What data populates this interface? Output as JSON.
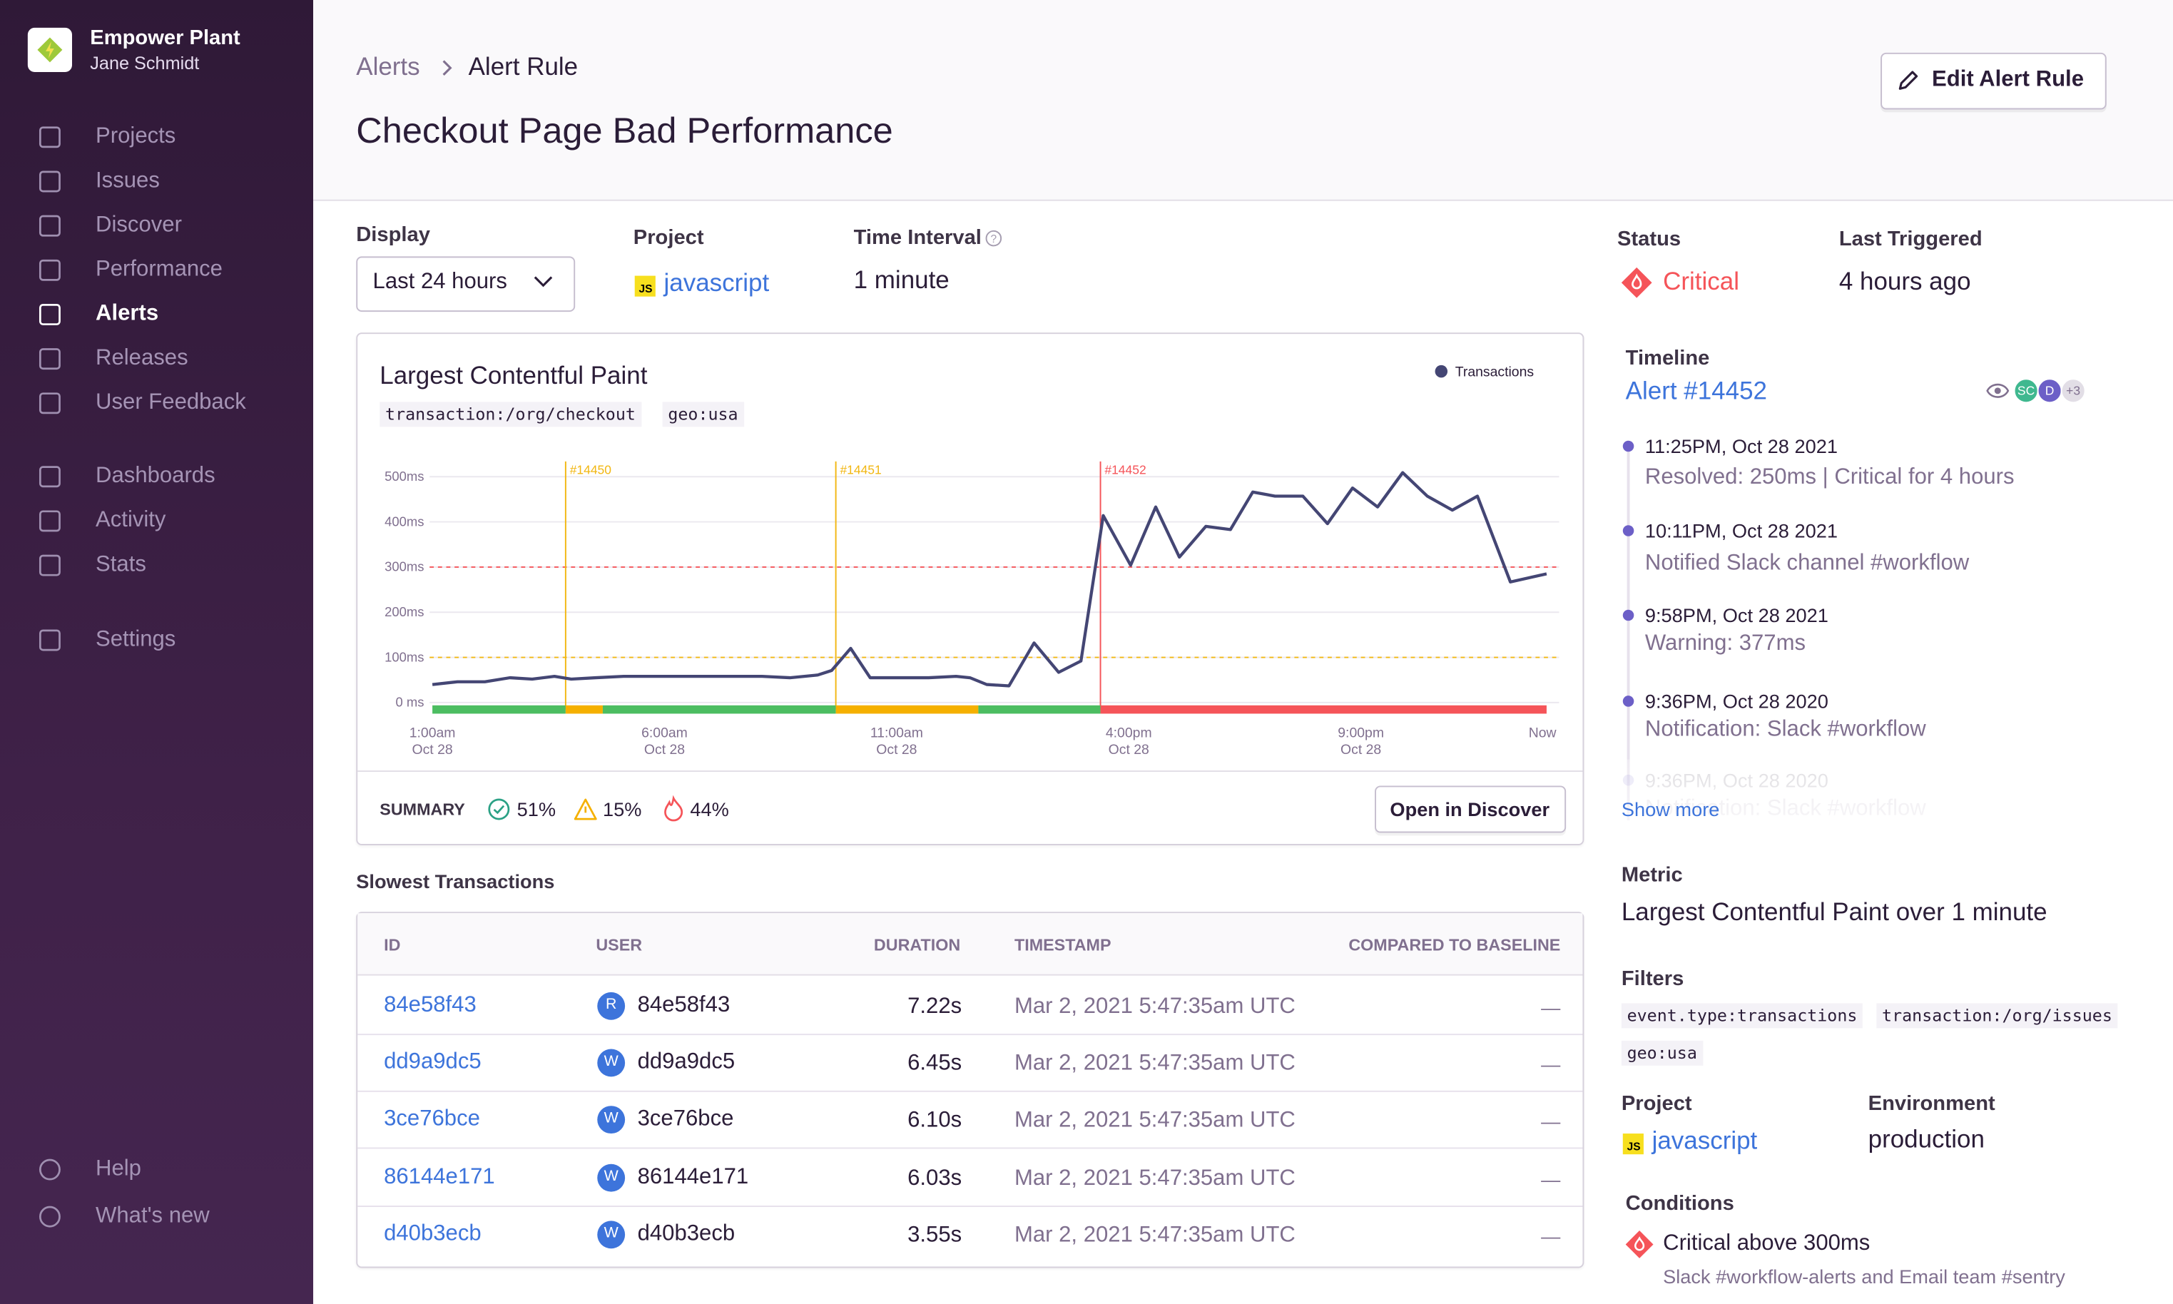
{
  "sidebar": {
    "org": "Empower Plant",
    "user": "Jane Schmidt",
    "nav": [
      "Projects",
      "Issues",
      "Discover",
      "Performance",
      "Alerts",
      "Releases",
      "User Feedback",
      "Dashboards",
      "Activity",
      "Stats",
      "Settings"
    ],
    "footer": [
      "Help",
      "What's new"
    ]
  },
  "header": {
    "breadcrumb": [
      "Alerts",
      "Alert Rule"
    ],
    "title": "Checkout Page Bad Performance",
    "edit_button": "Edit Alert Rule"
  },
  "controls": {
    "display_label": "Display",
    "display_value": "Last 24 hours",
    "project_label": "Project",
    "project_badge": "JS",
    "project_value": "javascript",
    "interval_label": "Time Interval",
    "interval_value": "1 minute"
  },
  "chart": {
    "type": "line",
    "title": "Largest Contentful Paint",
    "tags": [
      "transaction:/org/checkout",
      "geo:usa"
    ],
    "x": [
      1,
      1.54,
      2.13,
      2.67,
      3.15,
      3.63,
      3.99,
      4.52,
      5.12,
      5.72,
      6.31,
      6.91,
      7.51,
      8.1,
      8.7,
      9.3,
      9.6,
      10.01,
      10.43,
      11.09,
      11.69,
      12.28,
      12.58,
      12.94,
      13.42,
      13.96,
      14.49,
      14.97,
      15.45,
      16.04,
      16.58,
      17.09,
      17.66,
      18.19,
      18.67,
      19.15,
      19.75,
      20.28,
      20.82,
      21.36,
      21.9,
      22.43,
      22.97,
      23.51,
      24.22,
      25
    ],
    "series": [
      {
        "name": "Transactions",
        "color": "#444674",
        "values": [
          40,
          46,
          46,
          55,
          52,
          58,
          52,
          55,
          58,
          58,
          58,
          58,
          58,
          58,
          55,
          61,
          71,
          120,
          55,
          55,
          55,
          58,
          55,
          40,
          37,
          132,
          67,
          92,
          414,
          304,
          433,
          322,
          390,
          383,
          466,
          457,
          457,
          396,
          475,
          433,
          509,
          457,
          426,
          457,
          267,
          285
        ]
      }
    ],
    "xlim": [
      1,
      25
    ],
    "xticks": [
      {
        "value": 1,
        "label": "1:00am"
      },
      {
        "value": 6,
        "label": "6:00am"
      },
      {
        "value": 11,
        "label": "11:00am"
      },
      {
        "value": 16,
        "label": "4:00pm"
      },
      {
        "value": 21,
        "label": "9:00pm"
      },
      {
        "value": 25,
        "label": "Now"
      }
    ],
    "xtick_dates": [
      "Oct 28",
      "Oct 28",
      "Oct 28",
      "Oct 28",
      "Oct 28",
      null
    ],
    "ylim": [
      0,
      550
    ],
    "yticks": [
      {
        "value": 0,
        "label": "0 ms"
      },
      {
        "value": 100,
        "label": "100ms"
      },
      {
        "value": 200,
        "label": "200ms"
      },
      {
        "value": 300,
        "label": "300ms"
      },
      {
        "value": 400,
        "label": "400ms"
      },
      {
        "value": 500,
        "label": "500ms"
      }
    ],
    "grid": true,
    "critical_threshold": 300,
    "critical_color": "#f55459",
    "warning_threshold": 100,
    "warning_color": "#f2b712",
    "incidents": [
      {
        "label": "#14450",
        "x": 3.87,
        "color": "#f2b712"
      },
      {
        "label": "#14451",
        "x": 9.69,
        "color": "#f2b712"
      },
      {
        "label": "#14452",
        "x": 15.39,
        "color": "#f55459"
      }
    ],
    "status_bar": [
      {
        "start": 1,
        "end": 3.87,
        "color": "#4cbd61"
      },
      {
        "start": 3.87,
        "end": 4.67,
        "color": "#f5b000"
      },
      {
        "start": 4.67,
        "end": 9.69,
        "color": "#4cbd61"
      },
      {
        "start": 9.69,
        "end": 12.76,
        "color": "#f5b000"
      },
      {
        "start": 12.76,
        "end": 15.39,
        "color": "#4cbd61"
      },
      {
        "start": 15.39,
        "end": 25,
        "color": "#f55459"
      }
    ],
    "summary_label": "SUMMARY",
    "summary": [
      "51%",
      "15%",
      "44%"
    ],
    "open_button": "Open in Discover"
  },
  "table": {
    "title": "Slowest Transactions",
    "columns": [
      "ID",
      "USER",
      "DURATION",
      "TIMESTAMP",
      "COMPARED TO BASELINE"
    ],
    "rows": [
      [
        "84e58f43",
        "R",
        "84e58f43",
        "7.22s",
        "Mar 2, 2021 5:47:35am UTC",
        "—"
      ],
      [
        "dd9a9dc5",
        "W",
        "dd9a9dc5",
        "6.45s",
        "Mar 2, 2021 5:47:35am UTC",
        "—"
      ],
      [
        "3ce76bce",
        "W",
        "3ce76bce",
        "6.10s",
        "Mar 2, 2021 5:47:35am UTC",
        "—"
      ],
      [
        "86144e171",
        "W",
        "86144e171",
        "6.03s",
        "Mar 2, 2021 5:47:35am UTC",
        "—"
      ],
      [
        "d40b3ecb",
        "W",
        "d40b3ecb",
        "3.55s",
        "Mar 2, 2021 5:47:35am UTC",
        "—"
      ]
    ]
  },
  "details": {
    "status_label": "Status",
    "status_value": "Critical",
    "triggered_label": "Last Triggered",
    "triggered_value": "4 hours ago",
    "timeline_label": "Timeline",
    "alert_link": "Alert #14452",
    "avatars": [
      "SC",
      "D",
      "+3"
    ],
    "events": [
      {
        "time": "11:25PM, Oct 28 2021",
        "text": "Resolved: 250ms | Critical for 4 hours"
      },
      {
        "time": "10:11PM, Oct 28 2021",
        "text": "Notified Slack channel #workflow"
      },
      {
        "time": "9:58PM, Oct 28 2021",
        "text": "Warning: 377ms"
      },
      {
        "time": "9:36PM, Oct 28 2020",
        "text": "Notification: Slack #workflow"
      },
      {
        "time": "9:36PM, Oct 28 2020",
        "text": "Notification: Slack #workflow"
      }
    ],
    "show_more": "Show more",
    "metric_label": "Metric",
    "metric_value": "Largest Contentful Paint over 1 minute",
    "filters_label": "Filters",
    "filters": [
      "event.type:transactions",
      "transaction:/org/issues",
      "geo:usa"
    ],
    "project_label": "Project",
    "project_badge": "JS",
    "project_value": "javascript",
    "environment_label": "Environment",
    "environment_value": "production",
    "conditions_label": "Conditions",
    "condition": "Critical above 300ms",
    "condition_actions": "Slack #workflow-alerts and Email team #sentry"
  }
}
